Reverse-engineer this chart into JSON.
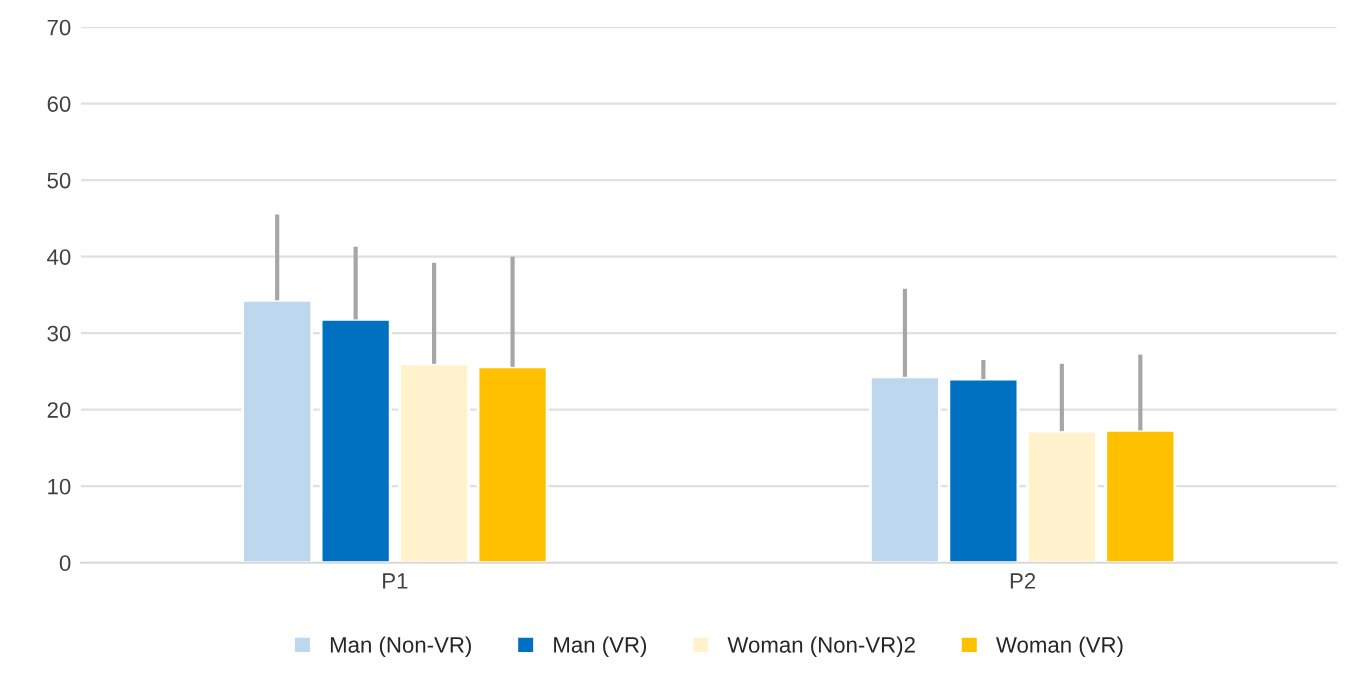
{
  "chart_data": {
    "type": "bar",
    "categories": [
      "P1",
      "P2"
    ],
    "series": [
      {
        "name": "Man (Non-VR)",
        "color": "#bdd7ee",
        "values": [
          34.3,
          24.3
        ],
        "errors": [
          [
            34.3,
            45.5
          ],
          [
            24.3,
            35.8
          ]
        ]
      },
      {
        "name": "Man (VR)",
        "color": "#0070c0",
        "values": [
          31.8,
          24.0
        ],
        "errors": [
          [
            31.8,
            41.3
          ],
          [
            24.0,
            26.5
          ]
        ]
      },
      {
        "name": "Woman (Non-VR)2",
        "color": "#fff2cc",
        "values": [
          26.0,
          17.2
        ],
        "errors": [
          [
            26.0,
            39.2
          ],
          [
            17.2,
            26.0
          ]
        ]
      },
      {
        "name": "Woman (VR)",
        "color": "#ffc000",
        "values": [
          25.6,
          17.3
        ],
        "errors": [
          [
            25.6,
            40.0
          ],
          [
            17.3,
            27.2
          ]
        ]
      }
    ],
    "ylim": [
      0,
      70
    ],
    "yticks": [
      0,
      10,
      20,
      30,
      40,
      50,
      60,
      70
    ],
    "grid": "y",
    "legend": "bottom"
  }
}
